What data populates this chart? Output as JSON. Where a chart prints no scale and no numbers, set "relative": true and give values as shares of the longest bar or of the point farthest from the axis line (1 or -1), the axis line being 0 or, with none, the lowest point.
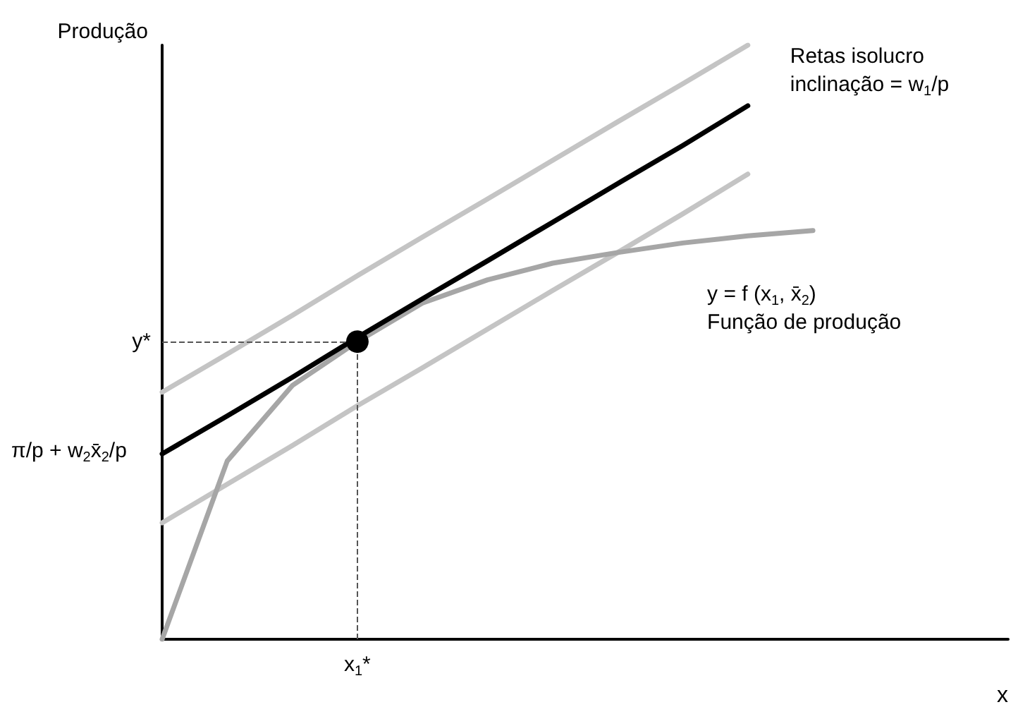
{
  "chart_data": {
    "type": "line",
    "relative": true,
    "xlabel": "x",
    "ylabel": "Produção",
    "grid": false,
    "marker": "none",
    "line_style": "solid",
    "categories": [
      null,
      null,
      null,
      null,
      null,
      null,
      null,
      null,
      null,
      null,
      null,
      null,
      null,
      null
    ],
    "series": [
      {
        "color": "#c4c4c4",
        "values": [
          0.416,
          0.48,
          0.545,
          0.612,
          0.677,
          0.741,
          0.806,
          0.871,
          0.935,
          1.0,
          null,
          null,
          null,
          null
        ]
      },
      {
        "color": "#c4c4c4",
        "values": [
          0.196,
          0.261,
          0.326,
          0.393,
          0.457,
          0.522,
          0.587,
          0.651,
          0.716,
          0.783,
          null,
          null,
          null,
          null
        ]
      },
      {
        "color": "#a6a6a6",
        "values": [
          0,
          0.3,
          0.427,
          0.501,
          0.566,
          0.605,
          0.633,
          0.651,
          0.667,
          0.679,
          0.688,
          null,
          null,
          null
        ]
      },
      {
        "color": "#000000",
        "values": [
          0.312,
          0.376,
          0.441,
          0.508,
          0.573,
          0.637,
          0.702,
          0.767,
          0.831,
          0.898,
          null,
          null,
          null,
          null
        ]
      }
    ],
    "ref_lines": [
      {
        "axis": "y",
        "value": 0.501,
        "label": "y*",
        "line_style": "dashed",
        "color": "#555555"
      }
    ],
    "annotations": [
      "Retas isolucro\ninclinação = w$_{1}$/p",
      "y = f (x$_{1}$, x̄$_{2}$)\nFunção de produção",
      "π/p + w$_{2}$x̄$_{2}$/p",
      "x$_{1}$*"
    ]
  }
}
